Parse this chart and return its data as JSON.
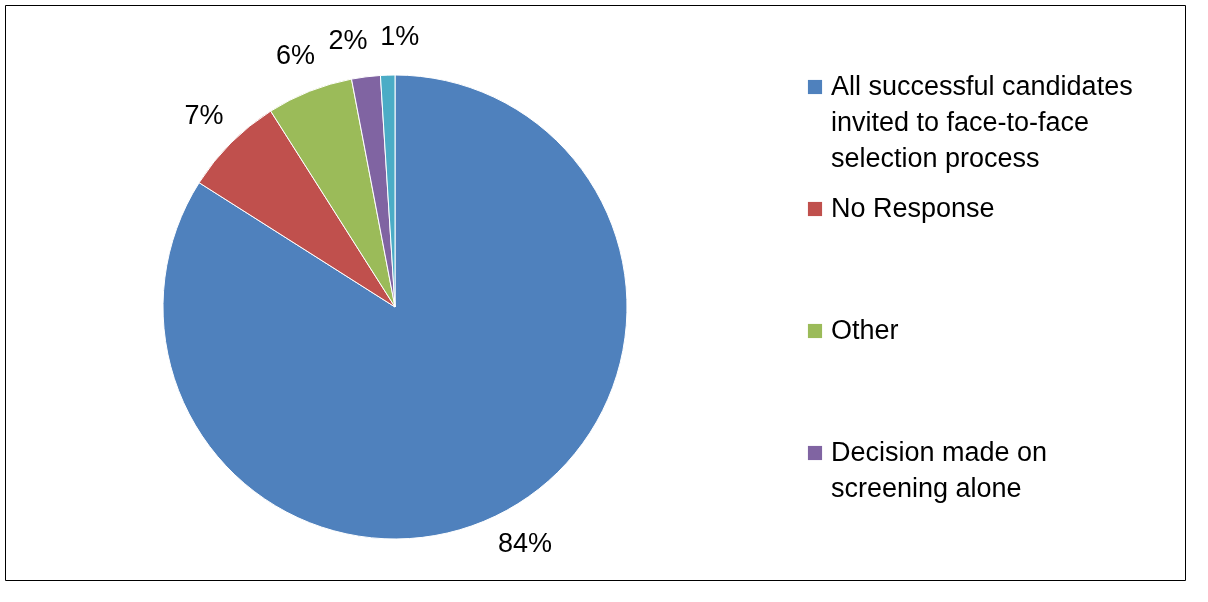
{
  "chart_data": {
    "type": "pie",
    "categories": [
      "All successful candidates invited to face-to-face selection process",
      "No Response",
      "Other",
      "Decision made on screening alone",
      null
    ],
    "values": [
      84,
      7,
      6,
      2,
      1
    ],
    "value_labels": [
      "84%",
      "7%",
      "6%",
      "2%",
      "1%"
    ],
    "colors": [
      "#4f81bd",
      "#c0504d",
      "#9bbb59",
      "#8064a2",
      "#4bacc6"
    ],
    "legend": "right"
  }
}
